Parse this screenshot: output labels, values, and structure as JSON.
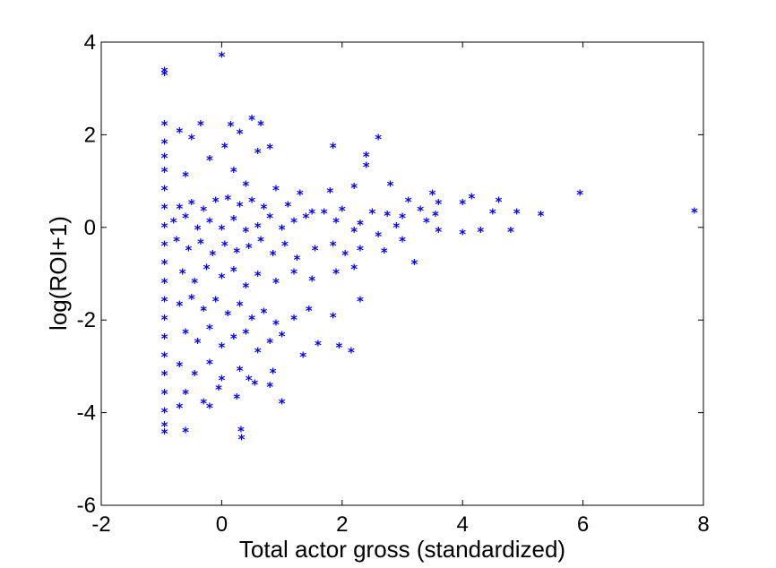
{
  "chart_data": {
    "type": "scatter",
    "title": "",
    "xlabel": "Total actor gross (standardized)",
    "ylabel": "log(ROI+1)",
    "xlim": [
      -2,
      8
    ],
    "ylim": [
      -6,
      4
    ],
    "xticks": [
      "-2",
      "0",
      "2",
      "4",
      "6",
      "8"
    ],
    "yticks": [
      "-6",
      "-4",
      "-2",
      "0",
      "2",
      "4"
    ],
    "grid": false,
    "legend": "none",
    "marker": "*",
    "color": "#0000ff",
    "series": [
      {
        "points": [
          [
            -0.95,
            3.35
          ],
          [
            -0.95,
            3.28
          ],
          [
            0.0,
            3.68
          ],
          [
            -0.95,
            2.2
          ],
          [
            -0.95,
            1.8
          ],
          [
            -0.95,
            1.5
          ],
          [
            -0.95,
            1.2
          ],
          [
            -0.95,
            0.8
          ],
          [
            -0.95,
            0.4
          ],
          [
            -0.95,
            0.0
          ],
          [
            -0.95,
            -0.4
          ],
          [
            -0.95,
            -0.8
          ],
          [
            -0.95,
            -1.2
          ],
          [
            -0.95,
            -1.6
          ],
          [
            -0.95,
            -2.0
          ],
          [
            -0.95,
            -2.4
          ],
          [
            -0.95,
            -2.8
          ],
          [
            -0.95,
            -3.2
          ],
          [
            -0.95,
            -3.6
          ],
          [
            -0.95,
            -4.0
          ],
          [
            -0.95,
            -4.3
          ],
          [
            -0.95,
            -4.45
          ],
          [
            -0.6,
            -4.42
          ],
          [
            0.33,
            -4.58
          ],
          [
            0.32,
            -4.4
          ],
          [
            -0.35,
            2.2
          ],
          [
            -0.7,
            2.05
          ],
          [
            0.5,
            2.32
          ],
          [
            0.65,
            2.2
          ],
          [
            0.15,
            2.18
          ],
          [
            0.3,
            2.02
          ],
          [
            -0.5,
            1.9
          ],
          [
            0.05,
            1.72
          ],
          [
            0.8,
            1.7
          ],
          [
            1.85,
            1.72
          ],
          [
            2.6,
            1.9
          ],
          [
            2.4,
            1.52
          ],
          [
            2.4,
            1.3
          ],
          [
            0.6,
            1.6
          ],
          [
            -0.2,
            1.45
          ],
          [
            0.2,
            1.2
          ],
          [
            -0.6,
            1.1
          ],
          [
            0.4,
            0.9
          ],
          [
            0.9,
            0.8
          ],
          [
            1.3,
            0.7
          ],
          [
            1.8,
            0.75
          ],
          [
            2.2,
            0.85
          ],
          [
            2.8,
            0.9
          ],
          [
            3.1,
            0.55
          ],
          [
            3.5,
            0.7
          ],
          [
            3.6,
            0.5
          ],
          [
            4.0,
            0.5
          ],
          [
            4.15,
            0.62
          ],
          [
            4.6,
            0.55
          ],
          [
            4.9,
            0.3
          ],
          [
            5.3,
            0.25
          ],
          [
            5.95,
            0.7
          ],
          [
            7.85,
            0.32
          ],
          [
            3.0,
            0.2
          ],
          [
            3.4,
            0.1
          ],
          [
            3.6,
            -0.1
          ],
          [
            3.55,
            0.25
          ],
          [
            4.0,
            -0.15
          ],
          [
            4.3,
            -0.1
          ],
          [
            4.8,
            -0.1
          ],
          [
            4.5,
            0.3
          ],
          [
            3.3,
            0.35
          ],
          [
            2.9,
            0.0
          ],
          [
            2.6,
            -0.2
          ],
          [
            2.2,
            -0.1
          ],
          [
            1.9,
            0.1
          ],
          [
            1.5,
            0.3
          ],
          [
            1.2,
            0.1
          ],
          [
            1.0,
            -0.05
          ],
          [
            0.8,
            0.2
          ],
          [
            0.6,
            0.0
          ],
          [
            0.4,
            -0.1
          ],
          [
            0.2,
            0.15
          ],
          [
            0.0,
            -0.05
          ],
          [
            -0.2,
            0.1
          ],
          [
            -0.4,
            -0.05
          ],
          [
            -0.6,
            0.2
          ],
          [
            -0.8,
            0.1
          ],
          [
            -0.7,
            0.4
          ],
          [
            -0.5,
            0.5
          ],
          [
            -0.3,
            0.35
          ],
          [
            -0.1,
            0.55
          ],
          [
            0.1,
            0.6
          ],
          [
            0.3,
            0.45
          ],
          [
            0.5,
            0.55
          ],
          [
            0.7,
            0.4
          ],
          [
            1.1,
            0.45
          ],
          [
            1.4,
            0.2
          ],
          [
            1.7,
            0.3
          ],
          [
            2.0,
            0.35
          ],
          [
            2.3,
            0.05
          ],
          [
            2.5,
            0.3
          ],
          [
            2.75,
            0.25
          ],
          [
            -0.75,
            -0.3
          ],
          [
            -0.55,
            -0.5
          ],
          [
            -0.35,
            -0.35
          ],
          [
            -0.15,
            -0.6
          ],
          [
            0.05,
            -0.4
          ],
          [
            0.25,
            -0.55
          ],
          [
            0.45,
            -0.45
          ],
          [
            0.65,
            -0.3
          ],
          [
            0.85,
            -0.6
          ],
          [
            1.05,
            -0.4
          ],
          [
            1.25,
            -0.7
          ],
          [
            1.55,
            -0.5
          ],
          [
            1.85,
            -0.4
          ],
          [
            2.05,
            -0.6
          ],
          [
            2.3,
            -0.5
          ],
          [
            2.7,
            -0.55
          ],
          [
            3.2,
            -0.8
          ],
          [
            3.0,
            -0.3
          ],
          [
            -0.65,
            -1.0
          ],
          [
            -0.45,
            -1.2
          ],
          [
            -0.25,
            -0.9
          ],
          [
            0.0,
            -1.1
          ],
          [
            0.2,
            -0.95
          ],
          [
            0.4,
            -1.3
          ],
          [
            0.6,
            -1.05
          ],
          [
            0.9,
            -1.2
          ],
          [
            1.2,
            -1.0
          ],
          [
            1.5,
            -1.15
          ],
          [
            1.9,
            -1.0
          ],
          [
            2.2,
            -0.9
          ],
          [
            2.3,
            -1.6
          ],
          [
            -0.7,
            -1.7
          ],
          [
            -0.5,
            -1.55
          ],
          [
            -0.3,
            -1.8
          ],
          [
            -0.1,
            -1.6
          ],
          [
            0.1,
            -1.9
          ],
          [
            0.3,
            -1.7
          ],
          [
            0.5,
            -2.0
          ],
          [
            0.7,
            -1.85
          ],
          [
            0.9,
            -2.1
          ],
          [
            1.2,
            -2.0
          ],
          [
            1.45,
            -1.8
          ],
          [
            1.85,
            -1.95
          ],
          [
            -0.6,
            -2.3
          ],
          [
            -0.4,
            -2.5
          ],
          [
            -0.2,
            -2.2
          ],
          [
            0.0,
            -2.6
          ],
          [
            0.2,
            -2.4
          ],
          [
            0.4,
            -2.3
          ],
          [
            0.6,
            -2.7
          ],
          [
            0.8,
            -2.5
          ],
          [
            1.0,
            -2.35
          ],
          [
            1.35,
            -2.8
          ],
          [
            1.6,
            -2.55
          ],
          [
            1.95,
            -2.6
          ],
          [
            2.15,
            -2.7
          ],
          [
            -0.7,
            -3.0
          ],
          [
            -0.45,
            -3.2
          ],
          [
            -0.2,
            -2.95
          ],
          [
            0.0,
            -3.3
          ],
          [
            0.3,
            -3.1
          ],
          [
            0.55,
            -3.4
          ],
          [
            0.85,
            -3.15
          ],
          [
            -0.6,
            -3.6
          ],
          [
            -0.3,
            -3.8
          ],
          [
            -0.05,
            -3.5
          ],
          [
            0.25,
            -3.7
          ],
          [
            0.8,
            -3.45
          ],
          [
            1.0,
            -3.8
          ],
          [
            -0.7,
            -3.9
          ],
          [
            -0.2,
            -3.9
          ],
          [
            0.45,
            -3.3
          ]
        ]
      }
    ]
  }
}
